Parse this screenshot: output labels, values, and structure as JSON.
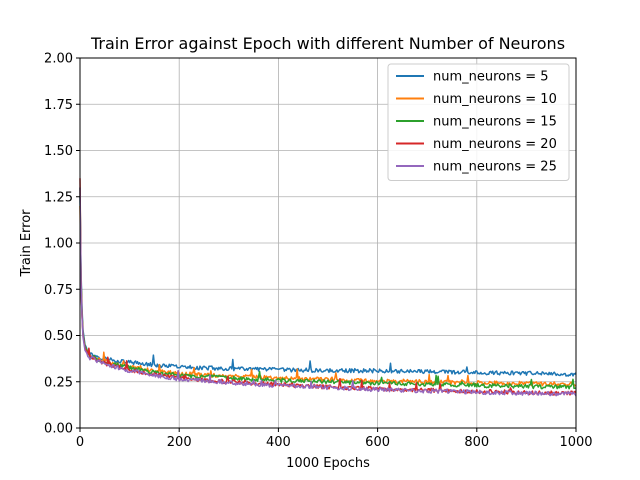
{
  "chart_data": {
    "type": "line",
    "title": "Train Error against Epoch with different Number of Neurons",
    "xlabel": "1000 Epochs",
    "ylabel": "Train Error",
    "xlim": [
      0,
      1000
    ],
    "ylim": [
      0,
      2.0
    ],
    "xticks": [
      0,
      200,
      400,
      600,
      800,
      1000
    ],
    "xtick_labels": [
      "0",
      "200",
      "400",
      "600",
      "800",
      "1000"
    ],
    "yticks": [
      0,
      0.25,
      0.5,
      0.75,
      1.0,
      1.25,
      1.5,
      1.75,
      2.0
    ],
    "ytick_labels": [
      "0.00",
      "0.25",
      "0.50",
      "0.75",
      "1.00",
      "1.25",
      "1.50",
      "1.75",
      "2.00"
    ],
    "grid": true,
    "legend_position": "top-right",
    "series": [
      {
        "name": "num_neurons = 5",
        "color": "#1f77b4",
        "x": [
          0,
          2,
          5,
          10,
          20,
          50,
          100,
          150,
          200,
          300,
          400,
          500,
          600,
          700,
          800,
          900,
          1000
        ],
        "values": [
          1.25,
          0.85,
          0.55,
          0.45,
          0.4,
          0.375,
          0.355,
          0.34,
          0.33,
          0.32,
          0.315,
          0.31,
          0.31,
          0.305,
          0.3,
          0.295,
          0.29
        ]
      },
      {
        "name": "num_neurons = 10",
        "color": "#ff7f0e",
        "x": [
          0,
          2,
          5,
          10,
          20,
          50,
          100,
          150,
          200,
          300,
          400,
          500,
          600,
          700,
          800,
          900,
          1000
        ],
        "values": [
          1.2,
          0.8,
          0.52,
          0.44,
          0.39,
          0.36,
          0.33,
          0.31,
          0.295,
          0.28,
          0.27,
          0.262,
          0.255,
          0.25,
          0.245,
          0.24,
          0.238
        ]
      },
      {
        "name": "num_neurons = 15",
        "color": "#2ca02c",
        "x": [
          0,
          2,
          5,
          10,
          20,
          50,
          100,
          150,
          200,
          300,
          400,
          500,
          600,
          700,
          800,
          900,
          1000
        ],
        "values": [
          1.3,
          0.82,
          0.53,
          0.44,
          0.39,
          0.355,
          0.325,
          0.3,
          0.285,
          0.27,
          0.258,
          0.25,
          0.242,
          0.236,
          0.23,
          0.225,
          0.22
        ]
      },
      {
        "name": "num_neurons = 20",
        "color": "#d62728",
        "x": [
          0,
          2,
          5,
          10,
          20,
          50,
          100,
          150,
          200,
          300,
          400,
          500,
          600,
          700,
          800,
          900,
          1000
        ],
        "values": [
          1.35,
          0.8,
          0.52,
          0.43,
          0.385,
          0.35,
          0.315,
          0.29,
          0.27,
          0.25,
          0.235,
          0.222,
          0.212,
          0.205,
          0.198,
          0.192,
          0.188
        ]
      },
      {
        "name": "num_neurons = 25",
        "color": "#9467bd",
        "x": [
          0,
          2,
          5,
          10,
          20,
          50,
          100,
          150,
          200,
          300,
          400,
          500,
          600,
          700,
          800,
          900,
          1000
        ],
        "values": [
          1.3,
          0.78,
          0.51,
          0.42,
          0.38,
          0.345,
          0.31,
          0.285,
          0.265,
          0.245,
          0.23,
          0.218,
          0.208,
          0.2,
          0.194,
          0.188,
          0.184
        ]
      }
    ]
  }
}
